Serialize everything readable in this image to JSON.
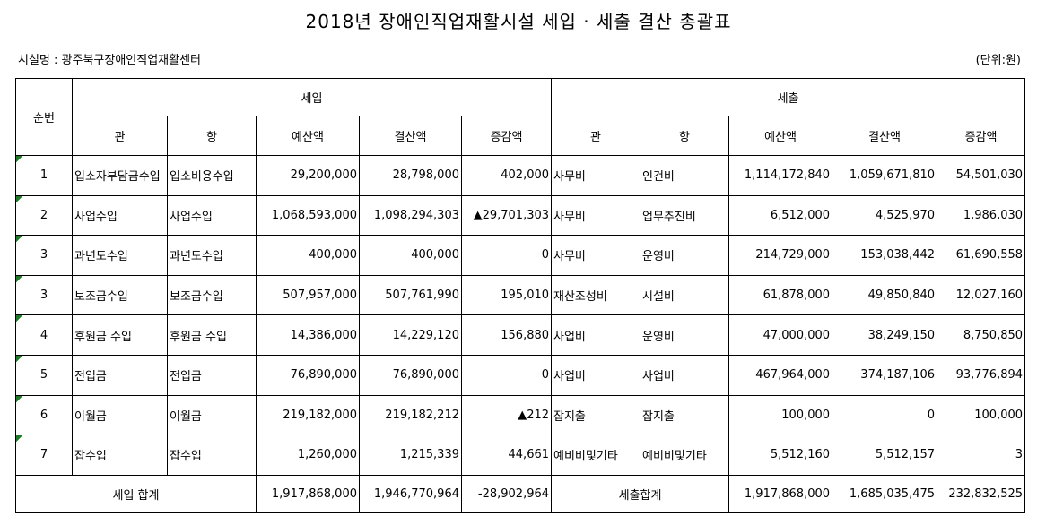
{
  "title": "2018년 장애인직업재활시설 세입 · 세출 결산 총괄표",
  "facility": "시설명 : 광주북구장애인직업재활센터",
  "unit": "(단위:원)",
  "table": {
    "header": {
      "no": "순번",
      "income": "세입",
      "expense": "세출",
      "columns": [
        "관",
        "항",
        "예산액",
        "결산액",
        "증감액",
        "관",
        "항",
        "예산액",
        "결산액",
        "증감액"
      ]
    },
    "rows": [
      [
        "1",
        "입소자부담금수입",
        "입소비용수입",
        "29,200,000",
        "28,798,000",
        "402,000",
        "사무비",
        "인건비",
        "1,114,172,840",
        "1,059,671,810",
        "54,501,030"
      ],
      [
        "2",
        "사업수입",
        "사업수입",
        "1,068,593,000",
        "1,098,294,303",
        "▲29,701,303",
        "사무비",
        "업무추진비",
        "6,512,000",
        "4,525,970",
        "1,986,030"
      ],
      [
        "3",
        "과년도수입",
        "과년도수입",
        "400,000",
        "400,000",
        "0",
        "사무비",
        "운영비",
        "214,729,000",
        "153,038,442",
        "61,690,558"
      ],
      [
        "3",
        "보조금수입",
        "보조금수입",
        "507,957,000",
        "507,761,990",
        "195,010",
        "재산조성비",
        "시설비",
        "61,878,000",
        "49,850,840",
        "12,027,160"
      ],
      [
        "4",
        "후원금 수입",
        "후원금 수입",
        "14,386,000",
        "14,229,120",
        "156,880",
        "사업비",
        "운영비",
        "47,000,000",
        "38,249,150",
        "8,750,850"
      ],
      [
        "5",
        "전입금",
        "전입금",
        "76,890,000",
        "76,890,000",
        "0",
        "사업비",
        "사업비",
        "467,964,000",
        "374,187,106",
        "93,776,894"
      ],
      [
        "6",
        "이월금",
        "이월금",
        "219,182,000",
        "219,182,212",
        "▲212",
        "잡지출",
        "잡지출",
        "100,000",
        "0",
        "100,000"
      ],
      [
        "7",
        "잡수입",
        "잡수입",
        "1,260,000",
        "1,215,339",
        "44,661",
        "예비비및기타",
        "예비비및기타",
        "5,512,160",
        "5,512,157",
        "3"
      ]
    ],
    "total": {
      "income_label": "세입 합계",
      "income": [
        "1,917,868,000",
        "1,946,770,964",
        "-28,902,964"
      ],
      "expense_label": "세출합계",
      "expense": [
        "1,917,868,000",
        "1,685,035,475",
        "232,832,525"
      ]
    }
  }
}
